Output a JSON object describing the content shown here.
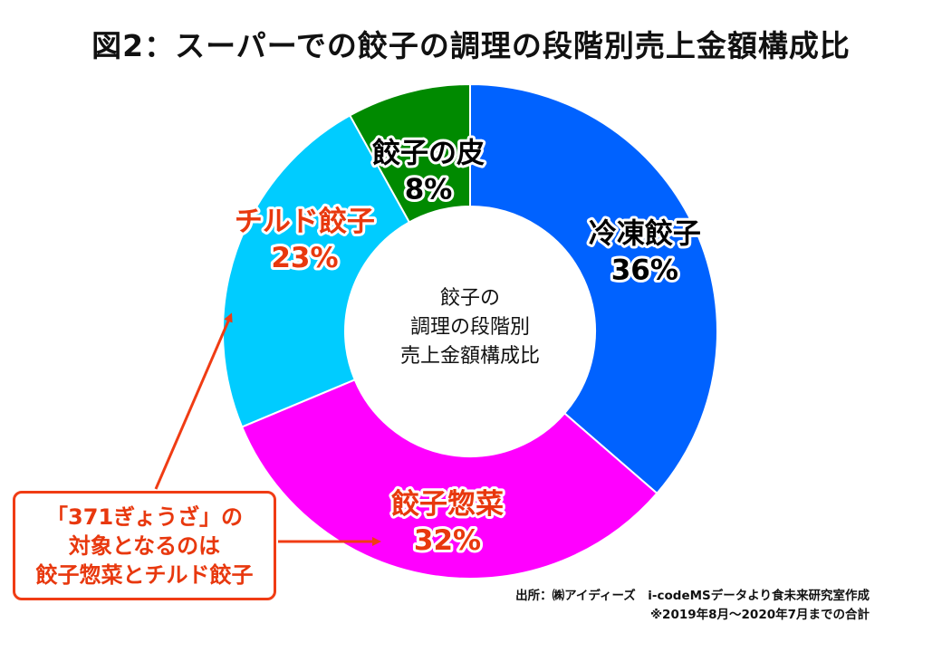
{
  "title": "図2：スーパーでの餃子の調理の段階別売上金額構成比",
  "chart_data": {
    "type": "pie",
    "donut": true,
    "title": "図2：スーパーでの餃子の調理の段階別売上金額構成比",
    "center_label": [
      "餃子の",
      "調理の段階別",
      "売上金額構成比"
    ],
    "slices": [
      {
        "name": "冷凍餃子",
        "value": 36,
        "label": "36%",
        "color": "#0062ff",
        "text_color": "#000000",
        "text_outline": "#ffffff"
      },
      {
        "name": "餃子惣菜",
        "value": 32,
        "label": "32%",
        "color": "#ff00ff",
        "text_color": "#e8380e",
        "text_outline": "#ffffff"
      },
      {
        "name": "チルド餃子",
        "value": 23,
        "label": "23%",
        "color": "#00ccff",
        "text_color": "#e8380e",
        "text_outline": "#ffffff"
      },
      {
        "name": "餃子の皮",
        "value": 8,
        "label": "8%",
        "color": "#008a00",
        "text_color": "#000000",
        "text_outline": "#ffffff"
      }
    ],
    "start": "12 o'clock",
    "direction": "clockwise"
  },
  "callout": {
    "lines": [
      "「371ぎょうざ」の",
      "対象となるのは",
      "餃子惣菜とチルド餃子"
    ],
    "color": "#f03c14"
  },
  "source": {
    "line1": "出所：㈱アイディーズ　i-codeMSデータより食未来研究室作成",
    "line2": "※2019年8月～2020年7月までの合計"
  }
}
